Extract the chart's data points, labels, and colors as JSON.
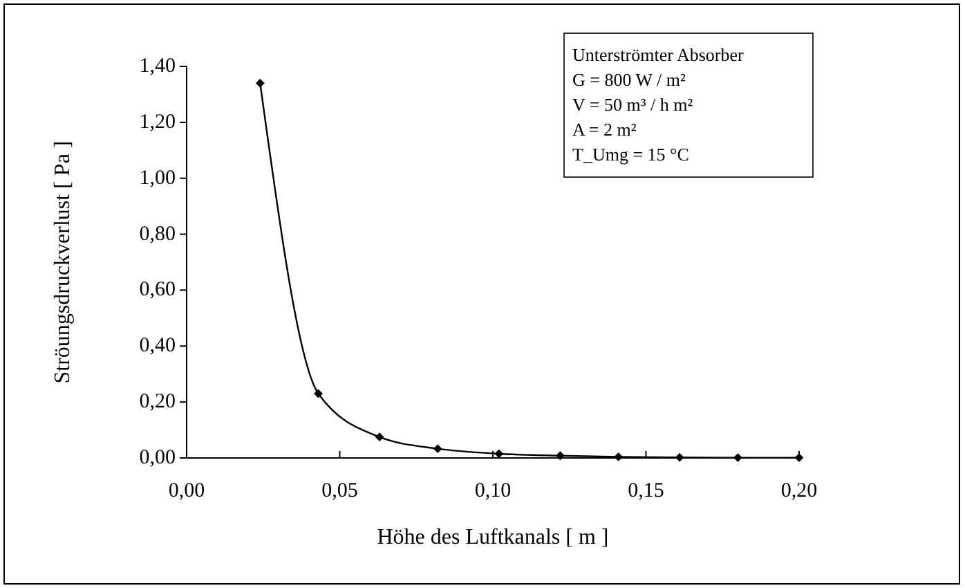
{
  "chart_data": {
    "type": "line",
    "xlabel": "Höhe des Luftkanals   [ m ]",
    "ylabel": "Ströungsdruckverlust   [ Pa ]",
    "x": [
      0.024,
      0.043,
      0.063,
      0.082,
      0.102,
      0.122,
      0.141,
      0.161,
      0.18,
      0.2
    ],
    "series": [
      {
        "color": "#000000",
        "values": [
          1.34,
          0.23,
          0.075,
          0.033,
          0.015,
          0.008,
          0.004,
          0.002,
          0.001,
          0.001
        ]
      }
    ],
    "xlim": [
      0,
      0.2
    ],
    "xticks": [
      {
        "value": 0,
        "label": "0,00"
      },
      {
        "value": 0.05,
        "label": "0,05"
      },
      {
        "value": 0.1,
        "label": "0,10"
      },
      {
        "value": 0.15,
        "label": "0,15"
      },
      {
        "value": 0.2,
        "label": "0,20"
      }
    ],
    "ylim": [
      0,
      1.4
    ],
    "yticks": [
      {
        "value": 0,
        "label": "0,00"
      },
      {
        "value": 0.2,
        "label": "0,20"
      },
      {
        "value": 0.4,
        "label": "0,40"
      },
      {
        "value": 0.6,
        "label": "0,60"
      },
      {
        "value": 0.8,
        "label": "0,80"
      },
      {
        "value": 1,
        "label": "1,00"
      },
      {
        "value": 1.2,
        "label": "1,20"
      },
      {
        "value": 1.4,
        "label": "1,40"
      }
    ],
    "marker": "diamond",
    "grid": false,
    "line_style": "solid",
    "annotations": [
      "Unterströmter Absorber",
      "G = 800 W / m²",
      "V = 50 m³ / h m²",
      "A = 2 m²",
      "T_Umg = 15 °C"
    ]
  }
}
